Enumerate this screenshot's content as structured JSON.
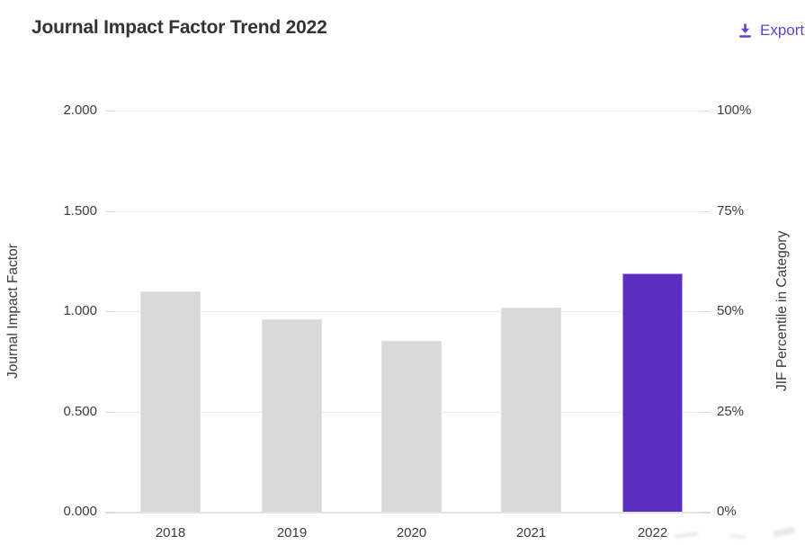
{
  "header": {
    "title": "Journal Impact Factor Trend 2022",
    "export_label": "Export"
  },
  "chart_data": {
    "type": "bar",
    "title": "Journal Impact Factor Trend 2022",
    "categories": [
      "2018",
      "2019",
      "2020",
      "2021",
      "2022"
    ],
    "series": [
      {
        "name": "Journal Impact Factor",
        "values": [
          1.1,
          0.96,
          0.85,
          1.02,
          1.19
        ]
      }
    ],
    "highlight_category": "2022",
    "highlight_index": 4,
    "ylabel_left": "Journal Impact Factor",
    "ylabel_right": "JIF Percentile in Category",
    "y_left_ticks": [
      "2.000",
      "1.500",
      "1.000",
      "0.500",
      "0.000"
    ],
    "y_right_ticks": [
      "100%",
      "75%",
      "50%",
      "25%",
      "0%"
    ],
    "ylim_left": [
      0,
      2.0
    ],
    "ylim_right_percent": [
      0,
      100
    ],
    "grid": true,
    "legend": "none",
    "bar_color": "#d9d9d9",
    "highlight_color": "#5a2fc0"
  },
  "colors": {
    "accent_purple": "#5a2fc0",
    "link_purple": "#6442cf",
    "bar_gray": "#d9d9d9",
    "gridline": "#ececec",
    "text": "#3a3a3a"
  }
}
